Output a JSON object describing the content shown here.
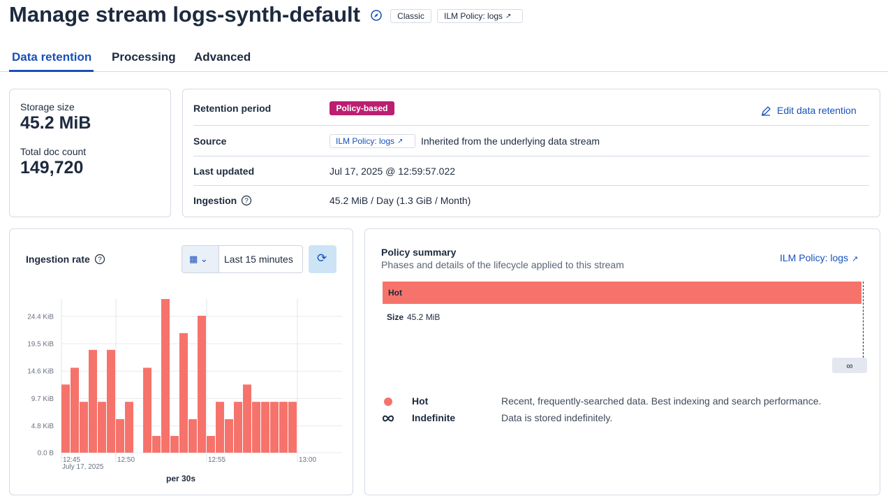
{
  "header": {
    "title": "Manage stream logs-synth-default",
    "badges": [
      "Classic",
      "ILM Policy: logs"
    ]
  },
  "tabs": [
    "Data retention",
    "Processing",
    "Advanced"
  ],
  "stats": {
    "storage_size": {
      "label": "Storage size",
      "value": "45.2 MiB"
    },
    "doc_count": {
      "label": "Total doc count",
      "value": "149,720"
    }
  },
  "retention": {
    "edit_link": "Edit data retention",
    "rows": [
      {
        "label": "Retention period",
        "badge": "Policy-based"
      },
      {
        "label": "Source",
        "link": "ILM Policy: logs",
        "text": "Inherited from the underlying data stream"
      },
      {
        "label": "Last updated",
        "text": "Jul 17, 2025 @ 12:59:57.022"
      },
      {
        "label": "Ingestion",
        "text": "45.2 MiB / Day (1.3 GiB / Month)"
      }
    ]
  },
  "ingestion_panel": {
    "title": "Ingestion rate",
    "time_range": "Last 15 minutes"
  },
  "chart_data": {
    "type": "bar",
    "xlabel": "per 30s",
    "x_sublabel": "July 17, 2025",
    "categories": [
      "12:45",
      null,
      null,
      null,
      null,
      null,
      "12:50",
      null,
      null,
      null,
      null,
      null,
      null,
      null,
      null,
      null,
      "12:55",
      null,
      null,
      null,
      null,
      null,
      null,
      null,
      null,
      null,
      "13:00"
    ],
    "values": [
      12.2,
      15.2,
      9.1,
      18.4,
      9.1,
      18.4,
      6.0,
      9.1,
      0,
      15.2,
      3.0,
      27.5,
      3.0,
      21.4,
      6.0,
      24.5,
      3.0,
      9.1,
      6.0,
      9.1,
      12.2,
      9.1,
      9.1,
      9.1,
      9.1,
      9.1,
      null
    ],
    "color": "#f6736b",
    "ylim": [
      0,
      27.5
    ],
    "yticks": [
      {
        "value": 0,
        "label": "0.0 B"
      },
      {
        "value": 4.8,
        "label": "4.8 KiB"
      },
      {
        "value": 9.7,
        "label": "9.7 KiB"
      },
      {
        "value": 14.6,
        "label": "14.6 KiB"
      },
      {
        "value": 19.5,
        "label": "19.5 KiB"
      },
      {
        "value": 24.4,
        "label": "24.4 KiB"
      }
    ],
    "grid": true
  },
  "policy": {
    "title": "Policy summary",
    "subtitle": "Phases and details of the lifecycle applied to this stream",
    "link": "ILM Policy: logs",
    "phase_bar": "Hot",
    "size_label": "Size",
    "size_value": "45.2 MiB",
    "end_label": "∞",
    "legend": [
      {
        "name": "Hot",
        "description": "Recent, frequently-searched data. Best indexing and search performance."
      },
      {
        "name": "Indefinite",
        "description": "Data is stored indefinitely."
      }
    ]
  }
}
